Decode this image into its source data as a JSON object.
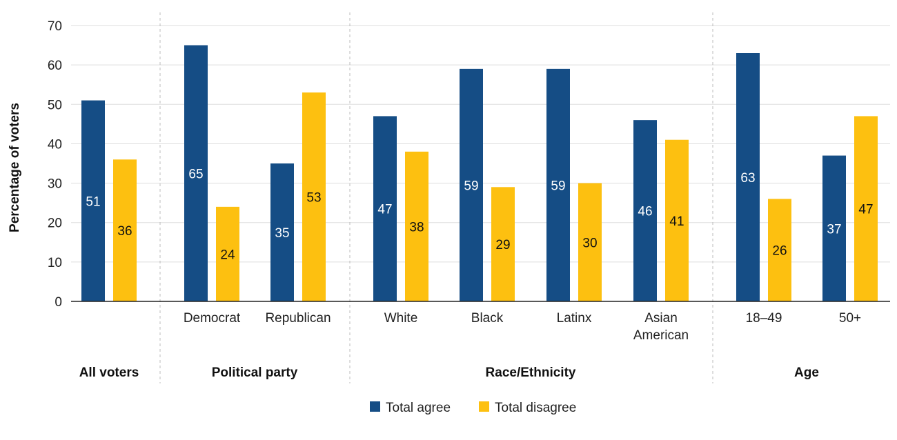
{
  "chart_data": {
    "type": "bar",
    "categories": [
      "",
      "Democrat",
      "Republican",
      "White",
      "Black",
      "Latinx",
      "Asian American",
      "18–49",
      "50+"
    ],
    "category_lines": [
      [
        ""
      ],
      [
        "Democrat"
      ],
      [
        "Republican"
      ],
      [
        "White"
      ],
      [
        "Black"
      ],
      [
        "Latinx"
      ],
      [
        "Asian",
        "American"
      ],
      [
        "18–49"
      ],
      [
        "50+"
      ]
    ],
    "groups": [
      {
        "label": "All voters",
        "count": 1
      },
      {
        "label": "Political party",
        "count": 2
      },
      {
        "label": "Race/Ethnicity",
        "count": 4
      },
      {
        "label": "Age",
        "count": 2
      }
    ],
    "series": [
      {
        "name": "Total agree",
        "color": "#154d85",
        "label_color": "#ffffff",
        "values": [
          51,
          65,
          35,
          47,
          59,
          59,
          46,
          63,
          37
        ]
      },
      {
        "name": "Total disagree",
        "color": "#fdc010",
        "label_color": "#111111",
        "values": [
          36,
          24,
          53,
          38,
          29,
          30,
          41,
          26,
          47
        ]
      }
    ],
    "ylabel": "Percentage of voters",
    "xlabel": "",
    "ylim": [
      0,
      70
    ],
    "yticks": [
      0,
      10,
      20,
      30,
      40,
      50,
      60,
      70
    ],
    "grid": true,
    "legend": "bottom-center",
    "gridline_color": "#dddddd",
    "separator_color": "#bbbbbb"
  }
}
